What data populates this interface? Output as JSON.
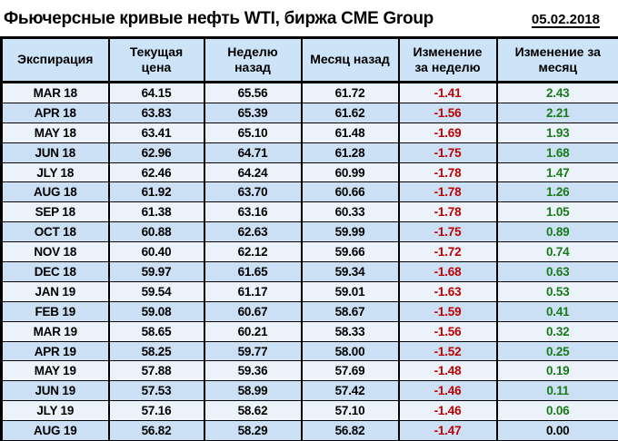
{
  "title": "Фьючерсные кривые нефть WTI, биржа CME Group",
  "date": "05.02.2018",
  "colors": {
    "negative": "#c00000",
    "positive": "#1a7a1a",
    "neutral": "#000000",
    "header_bg": "#cde3f7",
    "row_odd": "#ebf2fa",
    "row_even": "#cbe0f5",
    "border": "#000000"
  },
  "table": {
    "headers": [
      "Экспирация",
      "Текущая цена",
      "Неделю назад",
      "Месяц назад",
      "Изменение за неделю",
      "Изменение за месяц"
    ],
    "rows": [
      {
        "expiration": "MAR 18",
        "current": "64.15",
        "week_ago": "65.56",
        "month_ago": "61.72",
        "week_change": "-1.41",
        "month_change": "2.43"
      },
      {
        "expiration": "APR 18",
        "current": "63.83",
        "week_ago": "65.39",
        "month_ago": "61.62",
        "week_change": "-1.56",
        "month_change": "2.21"
      },
      {
        "expiration": "MAY 18",
        "current": "63.41",
        "week_ago": "65.10",
        "month_ago": "61.48",
        "week_change": "-1.69",
        "month_change": "1.93"
      },
      {
        "expiration": "JUN 18",
        "current": "62.96",
        "week_ago": "64.71",
        "month_ago": "61.28",
        "week_change": "-1.75",
        "month_change": "1.68"
      },
      {
        "expiration": "JLY 18",
        "current": "62.46",
        "week_ago": "64.24",
        "month_ago": "60.99",
        "week_change": "-1.78",
        "month_change": "1.47"
      },
      {
        "expiration": "AUG 18",
        "current": "61.92",
        "week_ago": "63.70",
        "month_ago": "60.66",
        "week_change": "-1.78",
        "month_change": "1.26"
      },
      {
        "expiration": "SEP 18",
        "current": "61.38",
        "week_ago": "63.16",
        "month_ago": "60.33",
        "week_change": "-1.78",
        "month_change": "1.05"
      },
      {
        "expiration": "OCT 18",
        "current": "60.88",
        "week_ago": "62.63",
        "month_ago": "59.99",
        "week_change": "-1.75",
        "month_change": "0.89"
      },
      {
        "expiration": "NOV 18",
        "current": "60.40",
        "week_ago": "62.12",
        "month_ago": "59.66",
        "week_change": "-1.72",
        "month_change": "0.74"
      },
      {
        "expiration": "DEC 18",
        "current": "59.97",
        "week_ago": "61.65",
        "month_ago": "59.34",
        "week_change": "-1.68",
        "month_change": "0.63"
      },
      {
        "expiration": "JAN 19",
        "current": "59.54",
        "week_ago": "61.17",
        "month_ago": "59.01",
        "week_change": "-1.63",
        "month_change": "0.53"
      },
      {
        "expiration": "FEB 19",
        "current": "59.08",
        "week_ago": "60.67",
        "month_ago": "58.67",
        "week_change": "-1.59",
        "month_change": "0.41"
      },
      {
        "expiration": "MAR 19",
        "current": "58.65",
        "week_ago": "60.21",
        "month_ago": "58.33",
        "week_change": "-1.56",
        "month_change": "0.32"
      },
      {
        "expiration": "APR 19",
        "current": "58.25",
        "week_ago": "59.77",
        "month_ago": "58.00",
        "week_change": "-1.52",
        "month_change": "0.25"
      },
      {
        "expiration": "MAY 19",
        "current": "57.88",
        "week_ago": "59.36",
        "month_ago": "57.69",
        "week_change": "-1.48",
        "month_change": "0.19"
      },
      {
        "expiration": "JUN 19",
        "current": "57.53",
        "week_ago": "58.99",
        "month_ago": "57.42",
        "week_change": "-1.46",
        "month_change": "0.11"
      },
      {
        "expiration": "JLY 19",
        "current": "57.16",
        "week_ago": "58.62",
        "month_ago": "57.10",
        "week_change": "-1.46",
        "month_change": "0.06"
      },
      {
        "expiration": "AUG 19",
        "current": "56.82",
        "week_ago": "58.29",
        "month_ago": "56.82",
        "week_change": "-1.47",
        "month_change": "0.00"
      }
    ]
  }
}
